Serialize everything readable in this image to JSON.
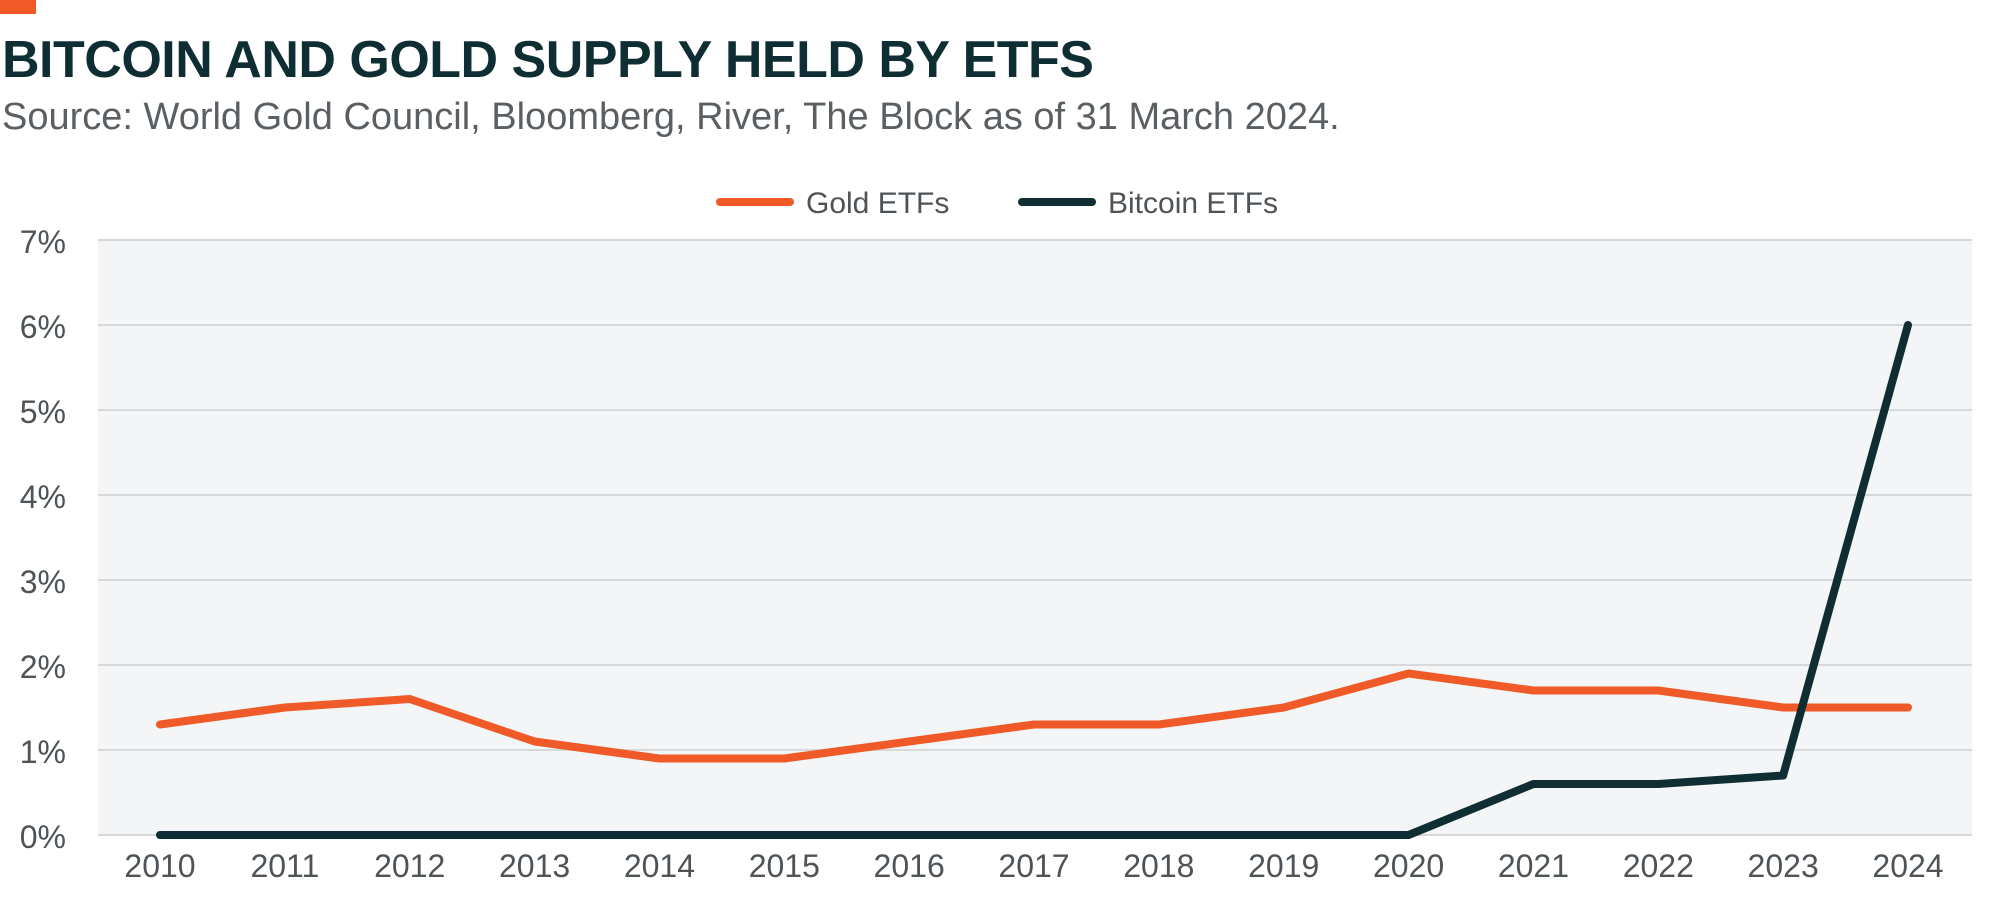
{
  "colors": {
    "accent": "#f05a28",
    "title": "#0f2e33",
    "gold": "#f05a28",
    "bitcoin": "#0f2e33",
    "plot_bg": "#f4f5f6",
    "grid": "#d6d8da",
    "axis_text": "#4d5357"
  },
  "header": {
    "title": "BITCOIN AND GOLD SUPPLY HELD BY ETFS",
    "subtitle": "Source: World Gold Council, Bloomberg, River, The Block as of 31 March 2024."
  },
  "chart_data": {
    "type": "line",
    "title": "BITCOIN AND GOLD SUPPLY HELD BY ETFS",
    "subtitle": "Source: World Gold Council, Bloomberg, River, The Block as of 31 March 2024.",
    "xlabel": "",
    "ylabel": "",
    "x": [
      "2010",
      "2011",
      "2012",
      "2013",
      "2014",
      "2015",
      "2016",
      "2017",
      "2018",
      "2019",
      "2020",
      "2021",
      "2022",
      "2023",
      "2024"
    ],
    "ylim": [
      0,
      7
    ],
    "yticks": [
      0,
      1,
      2,
      3,
      4,
      5,
      6,
      7
    ],
    "ytick_labels": [
      "0%",
      "1%",
      "2%",
      "3%",
      "4%",
      "5%",
      "6%",
      "7%"
    ],
    "grid": true,
    "legend_position": "top-center",
    "series": [
      {
        "name": "Gold ETFs",
        "color": "#f05a28",
        "values": [
          1.3,
          1.5,
          1.6,
          1.1,
          0.9,
          0.9,
          1.1,
          1.3,
          1.3,
          1.5,
          1.9,
          1.7,
          1.7,
          1.5,
          1.5
        ]
      },
      {
        "name": "Bitcoin ETFs",
        "color": "#0f2e33",
        "values": [
          0,
          0,
          0,
          0,
          0,
          0,
          0,
          0,
          0,
          0,
          0,
          0.6,
          0.6,
          0.7,
          6.0
        ]
      }
    ]
  }
}
